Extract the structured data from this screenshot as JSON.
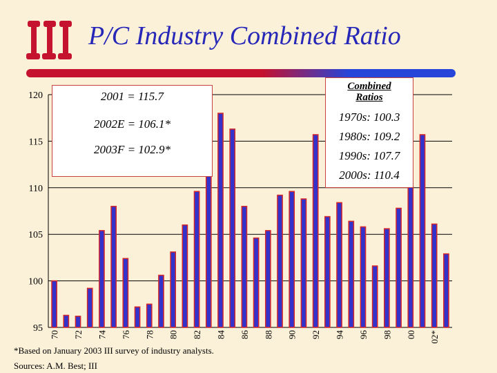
{
  "header": {
    "logo_text": "iii",
    "title": "P/C Industry Combined Ratio"
  },
  "callout_left": {
    "lines": [
      "2001 = 115.7",
      "2002E = 106.1*",
      "2003F = 102.9*"
    ]
  },
  "callout_right": {
    "heading_line1": "Combined",
    "heading_line2": "Ratios",
    "lines": [
      "1970s: 100.3",
      "1980s: 109.2",
      "1990s: 107.7",
      "2000s: 110.4"
    ]
  },
  "footnotes": {
    "note": "*Based on January 2003 III survey of industry analysts.",
    "sources": "Sources: A.M. Best; III"
  },
  "colors": {
    "bar_fill": "#3333CC",
    "bar_edge": "#D62828",
    "title": "#2727B8",
    "background": "#FBF1D8"
  },
  "chart_data": {
    "type": "bar",
    "title": "P/C Industry Combined Ratio",
    "xlabel": "",
    "ylabel": "",
    "ylim": [
      95,
      120
    ],
    "yticks": [
      95,
      100,
      105,
      110,
      115,
      120
    ],
    "grid": true,
    "categories": [
      "70",
      "71",
      "72",
      "73",
      "74",
      "75",
      "76",
      "77",
      "78",
      "79",
      "80",
      "81",
      "82",
      "83",
      "84",
      "85",
      "86",
      "87",
      "88",
      "89",
      "90",
      "91",
      "92",
      "93",
      "94",
      "95",
      "96",
      "97",
      "98",
      "99",
      "00",
      "01",
      "02*",
      "03"
    ],
    "tick_labels": [
      "70",
      "72",
      "74",
      "76",
      "78",
      "80",
      "82",
      "84",
      "86",
      "88",
      "90",
      "92",
      "94",
      "96",
      "98",
      "00",
      "02*"
    ],
    "values": [
      100.0,
      96.3,
      96.2,
      99.2,
      105.4,
      108.0,
      102.4,
      97.2,
      97.5,
      100.6,
      103.1,
      106.0,
      109.6,
      112.0,
      118.0,
      116.3,
      108.0,
      104.6,
      105.4,
      109.2,
      109.6,
      108.8,
      115.7,
      106.9,
      108.4,
      106.4,
      105.8,
      101.6,
      105.6,
      107.8,
      110.1,
      115.7,
      106.1,
      102.9
    ]
  }
}
